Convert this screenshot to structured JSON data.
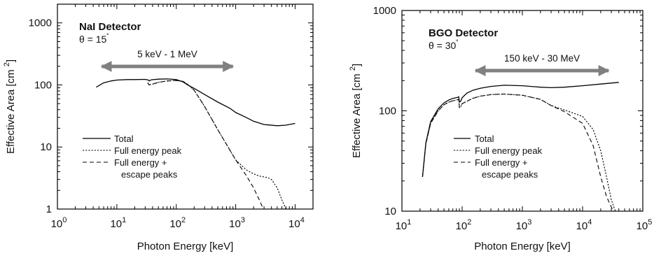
{
  "chart_data": [
    {
      "type": "line",
      "title": "NaI Detector",
      "subtitle_prefix": "θ = 15",
      "subtitle_degree": "˚",
      "xlabel": "Photon Energy  [keV]",
      "ylabel": "Effective Area  [cm",
      "ylabel_sup": "2",
      "ylabel_close": "]",
      "x_scale": "log",
      "y_scale": "log",
      "xlim": [
        1,
        20000
      ],
      "ylim": [
        1,
        2000
      ],
      "x_ticks": [
        {
          "base": "10",
          "exp": "0"
        },
        {
          "base": "10",
          "exp": "1"
        },
        {
          "base": "10",
          "exp": "2"
        },
        {
          "base": "10",
          "exp": "3"
        },
        {
          "base": "10",
          "exp": "4"
        }
      ],
      "y_ticks": [
        "1",
        "10",
        "100",
        "1000"
      ],
      "range_arrow": {
        "label": "5 keV - 1 MeV",
        "from": 5,
        "to": 1000,
        "y": 200
      },
      "legend": {
        "position": "lower-left"
      },
      "series": [
        {
          "name": "Total",
          "style": "solid",
          "x": [
            4.5,
            6,
            8,
            10,
            15,
            20,
            30,
            34,
            35,
            38,
            50,
            70,
            100,
            130,
            150,
            200,
            300,
            500,
            800,
            1000,
            1500,
            2000,
            3000,
            5000,
            7000,
            10000
          ],
          "y": [
            92,
            108,
            116,
            120,
            122,
            122,
            123,
            120,
            116,
            121,
            124,
            125,
            122,
            112,
            102,
            88,
            70,
            53,
            42,
            36,
            30,
            26,
            23,
            22,
            22.5,
            24
          ]
        },
        {
          "name": "Full energy peak",
          "name_line2": "",
          "style": "dotted",
          "x": [
            33,
            35,
            40,
            50,
            70,
            100,
            130,
            150,
            200,
            300,
            500,
            1000,
            1500,
            2000,
            2500,
            3000,
            3500,
            4000,
            5000,
            6000,
            7000
          ],
          "y": [
            108,
            100,
            103,
            110,
            116,
            118,
            114,
            105,
            82,
            45,
            19,
            6.2,
            4.3,
            3.7,
            3.4,
            3.3,
            3.2,
            3.0,
            2.2,
            1.4,
            1.0
          ]
        },
        {
          "name": "Full energy +",
          "name_line2": "escape peaks",
          "style": "dashed",
          "x": [
            33,
            35,
            40,
            50,
            70,
            100,
            130,
            150,
            200,
            300,
            500,
            1000,
            1500,
            2000,
            2500,
            2800,
            3000
          ],
          "y": [
            108,
            100,
            103,
            110,
            116,
            118,
            114,
            105,
            82,
            45,
            19,
            6.2,
            3.5,
            2.2,
            1.4,
            1.1,
            1.0
          ]
        }
      ]
    },
    {
      "type": "line",
      "title": "BGO Detector",
      "subtitle_prefix": "θ = 30",
      "subtitle_degree": "˚",
      "xlabel": "Photon Energy  [keV]",
      "ylabel": "Effective Area  [cm",
      "ylabel_sup": "2",
      "ylabel_close": "]",
      "x_scale": "log",
      "y_scale": "log",
      "xlim": [
        10,
        100000
      ],
      "ylim": [
        10,
        1000
      ],
      "x_ticks": [
        {
          "base": "10",
          "exp": "1"
        },
        {
          "base": "10",
          "exp": "2"
        },
        {
          "base": "10",
          "exp": "3"
        },
        {
          "base": "10",
          "exp": "4"
        },
        {
          "base": "10",
          "exp": "5"
        }
      ],
      "y_ticks": [
        "10",
        "100",
        "1000"
      ],
      "range_arrow": {
        "label": "150 keV - 30 MeV",
        "from": 150,
        "to": 30000,
        "y": 300
      },
      "legend": {
        "position": "lower-center"
      },
      "series": [
        {
          "name": "Total",
          "style": "solid",
          "x": [
            22,
            25,
            30,
            40,
            50,
            60,
            70,
            80,
            88,
            90,
            95,
            100,
            120,
            150,
            200,
            300,
            500,
            1000,
            2000,
            3000,
            5000,
            10000,
            20000,
            40000
          ],
          "y": [
            22,
            48,
            78,
            105,
            120,
            128,
            133,
            135,
            138,
            122,
            125,
            135,
            150,
            160,
            168,
            175,
            180,
            178,
            172,
            170,
            172,
            178,
            185,
            192
          ]
        },
        {
          "name": "Full energy peak",
          "name_line2": "",
          "style": "dotted",
          "x": [
            22,
            25,
            30,
            40,
            50,
            60,
            70,
            80,
            88,
            90,
            95,
            100,
            150,
            200,
            300,
            500,
            1000,
            2000,
            3000,
            5000,
            10000,
            15000,
            20000,
            25000,
            30000,
            35000
          ],
          "y": [
            22,
            47,
            75,
            100,
            115,
            122,
            126,
            128,
            130,
            108,
            110,
            118,
            133,
            140,
            145,
            147,
            143,
            130,
            113,
            102,
            88,
            65,
            40,
            22,
            13,
            10
          ]
        },
        {
          "name": "Full energy +",
          "name_line2": "escape peaks",
          "style": "dashed",
          "x": [
            22,
            25,
            30,
            40,
            50,
            60,
            70,
            80,
            88,
            90,
            95,
            100,
            150,
            200,
            300,
            500,
            1000,
            2000,
            3000,
            5000,
            10000,
            15000,
            20000,
            25000,
            30000,
            33000
          ],
          "y": [
            22,
            47,
            75,
            100,
            115,
            122,
            126,
            128,
            130,
            108,
            110,
            118,
            133,
            140,
            145,
            147,
            143,
            130,
            113,
            98,
            75,
            45,
            22,
            14,
            11,
            10
          ]
        }
      ]
    }
  ]
}
